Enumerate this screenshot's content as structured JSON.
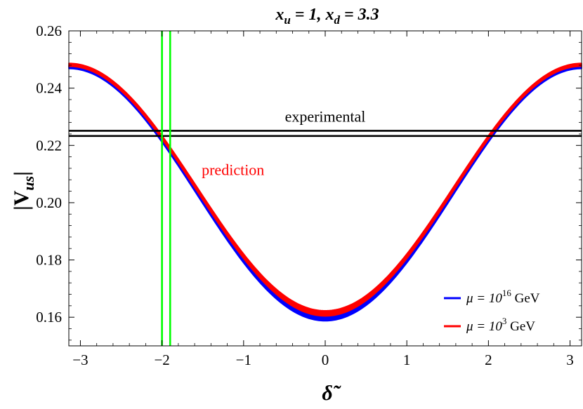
{
  "chart_data": {
    "type": "line",
    "title": {
      "parts": [
        {
          "t": "x",
          "i": true
        },
        {
          "t": "u",
          "sub": true,
          "i": true
        },
        {
          "t": " = 1,  ",
          "i": true
        },
        {
          "t": "x",
          "i": true
        },
        {
          "t": "d",
          "sub": true,
          "i": true
        },
        {
          "t": " = 3.3",
          "i": true
        }
      ]
    },
    "xlabel": "δ̃",
    "ylabel": "|V",
    "ylabel_sub": "us",
    "ylabel_end": "|",
    "xlim": [
      -3.14159,
      3.14159
    ],
    "ylim": [
      0.15,
      0.26
    ],
    "xticks": [
      {
        "v": -3,
        "label": "−3"
      },
      {
        "v": -2,
        "label": "−2"
      },
      {
        "v": -1,
        "label": "−1"
      },
      {
        "v": 0,
        "label": "0"
      },
      {
        "v": 1,
        "label": "1"
      },
      {
        "v": 2,
        "label": "2"
      },
      {
        "v": 3,
        "label": "3"
      }
    ],
    "yticks": [
      {
        "v": 0.16,
        "label": "0.16"
      },
      {
        "v": 0.18,
        "label": "0.18"
      },
      {
        "v": 0.2,
        "label": "0.20"
      },
      {
        "v": 0.22,
        "label": "0.22"
      },
      {
        "v": 0.24,
        "label": "0.24"
      },
      {
        "v": 0.26,
        "label": "0.26"
      }
    ],
    "series": [
      {
        "name": "μ = 10^16 GeV",
        "color": "#0000ff",
        "band_low": {
          "at_zero": 0.1587,
          "at_pi": 0.2468
        },
        "band_high": {
          "at_zero": 0.1607,
          "at_pi": 0.2478
        }
      },
      {
        "name": "μ = 10^3 GeV",
        "color": "#ff0000",
        "band_low": {
          "at_zero": 0.1604,
          "at_pi": 0.2476
        },
        "band_high": {
          "at_zero": 0.1623,
          "at_pi": 0.2487
        }
      }
    ],
    "hlines": [
      {
        "y": 0.2233,
        "color": "#000000"
      },
      {
        "y": 0.2251,
        "color": "#000000"
      }
    ],
    "vlines": [
      {
        "x": -2.0,
        "color": "#00ff00"
      },
      {
        "x": -1.9,
        "color": "#00ff00"
      }
    ],
    "annotations": [
      {
        "text": "experimental",
        "x": 0.0,
        "y": 0.2283,
        "color": "#000000"
      },
      {
        "text": "prediction",
        "x": -1.13,
        "y": 0.2096,
        "color": "#ff0000"
      }
    ],
    "legend": {
      "position": "bottom-right",
      "entries": [
        {
          "prefix": "μ = 10",
          "sup": "16",
          "suffix": " GeV",
          "color": "#0000ff"
        },
        {
          "prefix": "μ = 10",
          "sup": "3",
          "suffix": " GeV",
          "color": "#ff0000"
        }
      ]
    },
    "grid": false
  }
}
